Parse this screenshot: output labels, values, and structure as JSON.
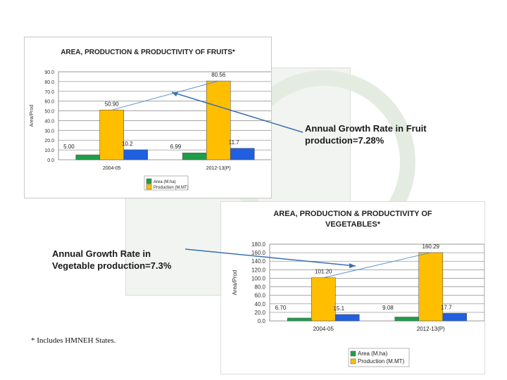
{
  "footnote": "* Includes HMNEH States.",
  "fruit_callout": {
    "line1": "Annual Growth Rate in Fruit",
    "line2": "production=7.28%"
  },
  "veg_callout": {
    "line1": "Annual Growth Rate in",
    "line2": "Vegetable production=7.3%"
  },
  "colors": {
    "area": "#1e9e47",
    "production": "#ffbf00",
    "productivity": "#1f5fe0",
    "trend": "#5a8fd0"
  },
  "chart_data": [
    {
      "type": "bar",
      "title": "AREA, PRODUCTION & PRODUCTIVITY OF FRUITS*",
      "title_lines": [
        "AREA, PRODUCTION & PRODUCTIVITY OF FRUITS*"
      ],
      "ylabel": "Area/Prod",
      "ylim": [
        0,
        90
      ],
      "yticks": [
        "0.0",
        "10.0",
        "20.0",
        "30.0",
        "40.0",
        "50.0",
        "60.0",
        "70.0",
        "80.0",
        "90.0"
      ],
      "categories": [
        "2004-05",
        "2012-13(P)"
      ],
      "series": [
        {
          "name": "Area (M.ha)",
          "values": [
            5.0,
            6.99
          ],
          "labels": [
            "5.00",
            "6.99"
          ]
        },
        {
          "name": "Production (M.MT)",
          "values": [
            50.9,
            80.56
          ],
          "labels": [
            "50.90",
            "80.56"
          ]
        },
        {
          "values": [
            10.2,
            11.7
          ],
          "labels": [
            "10.2",
            "11.7"
          ]
        }
      ],
      "legend": [
        "Area (M.ha)",
        "Production (M.MT)"
      ],
      "grid": true
    },
    {
      "type": "bar",
      "title": "AREA, PRODUCTION & PRODUCTIVITY OF VEGETABLES*",
      "title_lines": [
        "AREA, PRODUCTION & PRODUCTIVITY OF",
        "VEGETABLES*"
      ],
      "ylabel": "Area/Prod",
      "ylim": [
        0,
        180
      ],
      "yticks": [
        "0.0",
        "20.0",
        "40.0",
        "60.0",
        "80.0",
        "100.0",
        "120.0",
        "140.0",
        "160.0",
        "180.0"
      ],
      "categories": [
        "2004-05",
        "2012-13(P)"
      ],
      "series": [
        {
          "name": "Area (M.ha)",
          "values": [
            6.7,
            9.08
          ],
          "labels": [
            "6.70",
            "9.08"
          ]
        },
        {
          "name": "Production (M.MT)",
          "values": [
            101.2,
            160.29
          ],
          "labels": [
            "101.20",
            "160.29"
          ]
        },
        {
          "values": [
            15.1,
            17.7
          ],
          "labels": [
            "15.1",
            "17.7"
          ]
        }
      ],
      "legend": [
        "Area (M.ha)",
        "Production (M.MT)"
      ],
      "grid": true
    }
  ]
}
